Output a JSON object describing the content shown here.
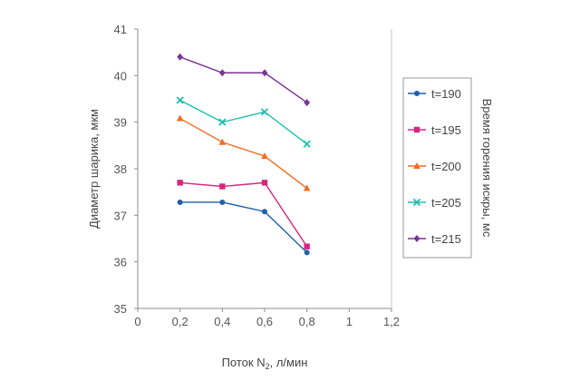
{
  "chart_data": {
    "type": "line",
    "title": "",
    "xlabel": "Поток N",
    "xlabel_sub": "2",
    "xlabel_tail": ", л/мин",
    "ylabel": "Диаметр шарика, мкм",
    "legend_title": "Время горения искры, мс",
    "legend_position": "right",
    "xlim": [
      0,
      1.2
    ],
    "ylim": [
      35,
      41
    ],
    "x_ticks": [
      "0",
      "0,2",
      "0,4",
      "0,6",
      "0,8",
      "1",
      "1,2"
    ],
    "y_ticks": [
      "35",
      "36",
      "37",
      "38",
      "39",
      "40",
      "41"
    ],
    "grid": false,
    "x": [
      0.2,
      0.4,
      0.6,
      0.8
    ],
    "series": [
      {
        "name": "t=190",
        "values": [
          37.28,
          37.28,
          37.08,
          36.2
        ],
        "color": "#1f5fa8",
        "marker": "circle"
      },
      {
        "name": "t=195",
        "values": [
          37.7,
          37.62,
          37.7,
          36.33
        ],
        "color": "#d6267e",
        "marker": "square"
      },
      {
        "name": "t=200",
        "values": [
          39.08,
          38.57,
          38.27,
          37.58
        ],
        "color": "#f26b21",
        "marker": "triangle"
      },
      {
        "name": "t=205",
        "values": [
          39.47,
          39.0,
          39.22,
          38.53
        ],
        "color": "#1ebfae",
        "marker": "x"
      },
      {
        "name": "t=215",
        "values": [
          40.4,
          40.06,
          40.06,
          39.42
        ],
        "color": "#7b3294",
        "marker": "diamond"
      }
    ]
  }
}
